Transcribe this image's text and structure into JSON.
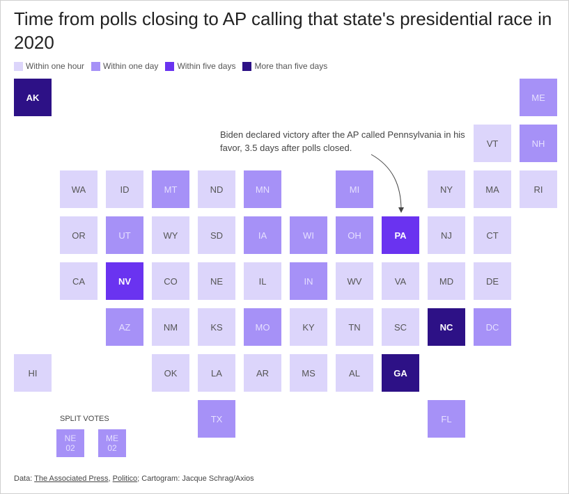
{
  "title": "Time from polls closing to AP calling that state's presidential race in 2020",
  "legend": [
    {
      "label": "Within one hour",
      "color": "#dcd5fb"
    },
    {
      "label": "Within one day",
      "color": "#a691f7"
    },
    {
      "label": "Within five days",
      "color": "#6a33f0"
    },
    {
      "label": "More than five days",
      "color": "#2d1186"
    }
  ],
  "annotation": "Biden declared victory after the AP called Pennsylvania in his favor, 3.5 days after polls closed.",
  "split_votes_label": "SPLIT VOTES",
  "source": {
    "prefix": "Data: ",
    "ap": "The Associated Press",
    "sep": ", ",
    "politico": "Politico",
    "suffix": "; Cartogram: Jacque Schrag/Axios"
  },
  "chart_data": {
    "type": "heatmap",
    "title": "Time from polls closing to AP calling that state's presidential race in 2020",
    "categories": [
      "Within one hour",
      "Within one day",
      "Within five days",
      "More than five days"
    ],
    "tiles": [
      {
        "state": "AK",
        "col": 0,
        "row": 0,
        "bucket": 3
      },
      {
        "state": "ME",
        "col": 11,
        "row": 0,
        "bucket": 1
      },
      {
        "state": "VT",
        "col": 10,
        "row": 1,
        "bucket": 0
      },
      {
        "state": "NH",
        "col": 11,
        "row": 1,
        "bucket": 1
      },
      {
        "state": "WA",
        "col": 1,
        "row": 2,
        "bucket": 0
      },
      {
        "state": "ID",
        "col": 2,
        "row": 2,
        "bucket": 0
      },
      {
        "state": "MT",
        "col": 3,
        "row": 2,
        "bucket": 1
      },
      {
        "state": "ND",
        "col": 4,
        "row": 2,
        "bucket": 0
      },
      {
        "state": "MN",
        "col": 5,
        "row": 2,
        "bucket": 1
      },
      {
        "state": "MI",
        "col": 7,
        "row": 2,
        "bucket": 1
      },
      {
        "state": "NY",
        "col": 9,
        "row": 2,
        "bucket": 0
      },
      {
        "state": "MA",
        "col": 10,
        "row": 2,
        "bucket": 0
      },
      {
        "state": "RI",
        "col": 11,
        "row": 2,
        "bucket": 0
      },
      {
        "state": "OR",
        "col": 1,
        "row": 3,
        "bucket": 0
      },
      {
        "state": "UT",
        "col": 2,
        "row": 3,
        "bucket": 1
      },
      {
        "state": "WY",
        "col": 3,
        "row": 3,
        "bucket": 0
      },
      {
        "state": "SD",
        "col": 4,
        "row": 3,
        "bucket": 0
      },
      {
        "state": "IA",
        "col": 5,
        "row": 3,
        "bucket": 1
      },
      {
        "state": "WI",
        "col": 6,
        "row": 3,
        "bucket": 1
      },
      {
        "state": "OH",
        "col": 7,
        "row": 3,
        "bucket": 1
      },
      {
        "state": "PA",
        "col": 8,
        "row": 3,
        "bucket": 2
      },
      {
        "state": "NJ",
        "col": 9,
        "row": 3,
        "bucket": 0
      },
      {
        "state": "CT",
        "col": 10,
        "row": 3,
        "bucket": 0
      },
      {
        "state": "CA",
        "col": 1,
        "row": 4,
        "bucket": 0
      },
      {
        "state": "NV",
        "col": 2,
        "row": 4,
        "bucket": 2
      },
      {
        "state": "CO",
        "col": 3,
        "row": 4,
        "bucket": 0
      },
      {
        "state": "NE",
        "col": 4,
        "row": 4,
        "bucket": 0
      },
      {
        "state": "IL",
        "col": 5,
        "row": 4,
        "bucket": 0
      },
      {
        "state": "IN",
        "col": 6,
        "row": 4,
        "bucket": 1
      },
      {
        "state": "WV",
        "col": 7,
        "row": 4,
        "bucket": 0
      },
      {
        "state": "VA",
        "col": 8,
        "row": 4,
        "bucket": 0
      },
      {
        "state": "MD",
        "col": 9,
        "row": 4,
        "bucket": 0
      },
      {
        "state": "DE",
        "col": 10,
        "row": 4,
        "bucket": 0
      },
      {
        "state": "AZ",
        "col": 2,
        "row": 5,
        "bucket": 1
      },
      {
        "state": "NM",
        "col": 3,
        "row": 5,
        "bucket": 0
      },
      {
        "state": "KS",
        "col": 4,
        "row": 5,
        "bucket": 0
      },
      {
        "state": "MO",
        "col": 5,
        "row": 5,
        "bucket": 1
      },
      {
        "state": "KY",
        "col": 6,
        "row": 5,
        "bucket": 0
      },
      {
        "state": "TN",
        "col": 7,
        "row": 5,
        "bucket": 0
      },
      {
        "state": "SC",
        "col": 8,
        "row": 5,
        "bucket": 0
      },
      {
        "state": "NC",
        "col": 9,
        "row": 5,
        "bucket": 3
      },
      {
        "state": "DC",
        "col": 10,
        "row": 5,
        "bucket": 1
      },
      {
        "state": "HI",
        "col": 0,
        "row": 6,
        "bucket": 0
      },
      {
        "state": "OK",
        "col": 3,
        "row": 6,
        "bucket": 0
      },
      {
        "state": "LA",
        "col": 4,
        "row": 6,
        "bucket": 0
      },
      {
        "state": "AR",
        "col": 5,
        "row": 6,
        "bucket": 0
      },
      {
        "state": "MS",
        "col": 6,
        "row": 6,
        "bucket": 0
      },
      {
        "state": "AL",
        "col": 7,
        "row": 6,
        "bucket": 0
      },
      {
        "state": "GA",
        "col": 8,
        "row": 6,
        "bucket": 3
      },
      {
        "state": "TX",
        "col": 4,
        "row": 7,
        "bucket": 1
      },
      {
        "state": "FL",
        "col": 9,
        "row": 7,
        "bucket": 1
      }
    ],
    "split_votes": [
      {
        "line1": "NE",
        "line2": "02",
        "bucket": 1
      },
      {
        "line1": "ME",
        "line2": "02",
        "bucket": 1
      }
    ]
  }
}
